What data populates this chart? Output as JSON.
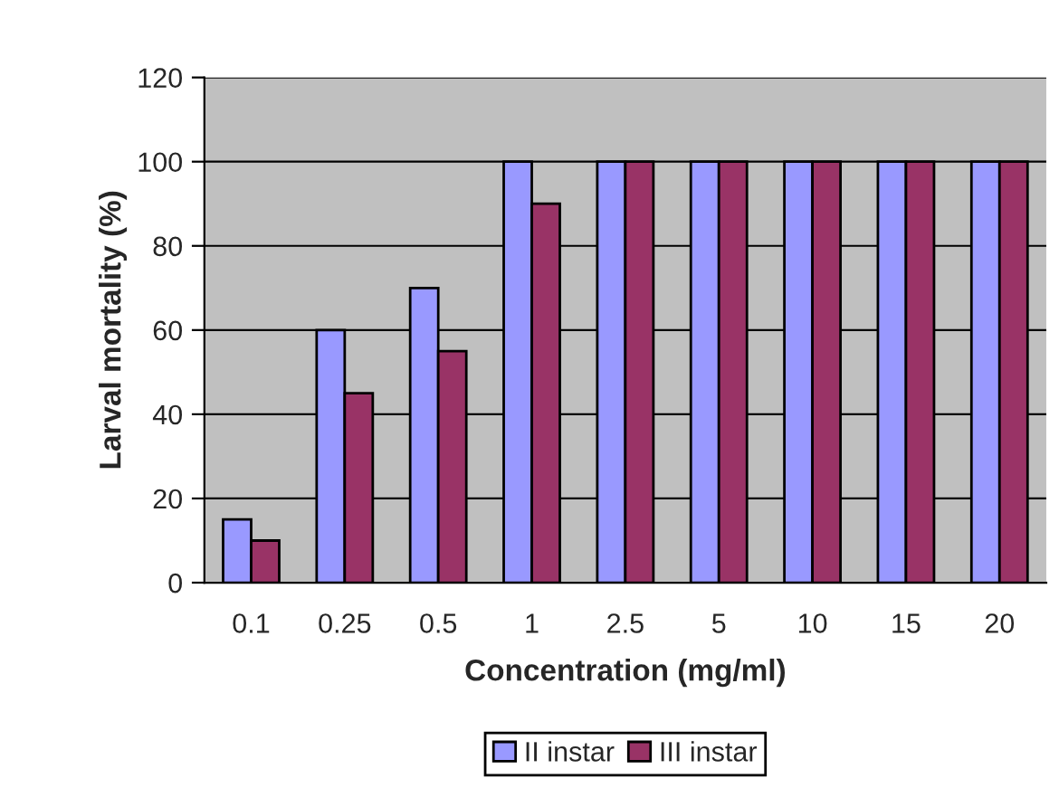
{
  "chart_data": {
    "type": "bar",
    "xlabel": "Concentration (mg/ml)",
    "ylabel": "Larval mortality (%)",
    "categories": [
      "0.1",
      "0.25",
      "0.5",
      "1",
      "2.5",
      "5",
      "10",
      "15",
      "20"
    ],
    "series": [
      {
        "name": "II instar",
        "color": "#9999ff",
        "values": [
          15,
          60,
          70,
          100,
          100,
          100,
          100,
          100,
          100
        ]
      },
      {
        "name": "III instar",
        "color": "#993366",
        "values": [
          10,
          45,
          55,
          90,
          100,
          100,
          100,
          100,
          100
        ]
      }
    ],
    "ylim": [
      0,
      120
    ],
    "yticks": [
      0,
      20,
      40,
      60,
      80,
      100,
      120
    ],
    "grid": "y",
    "legend": "bottom"
  }
}
